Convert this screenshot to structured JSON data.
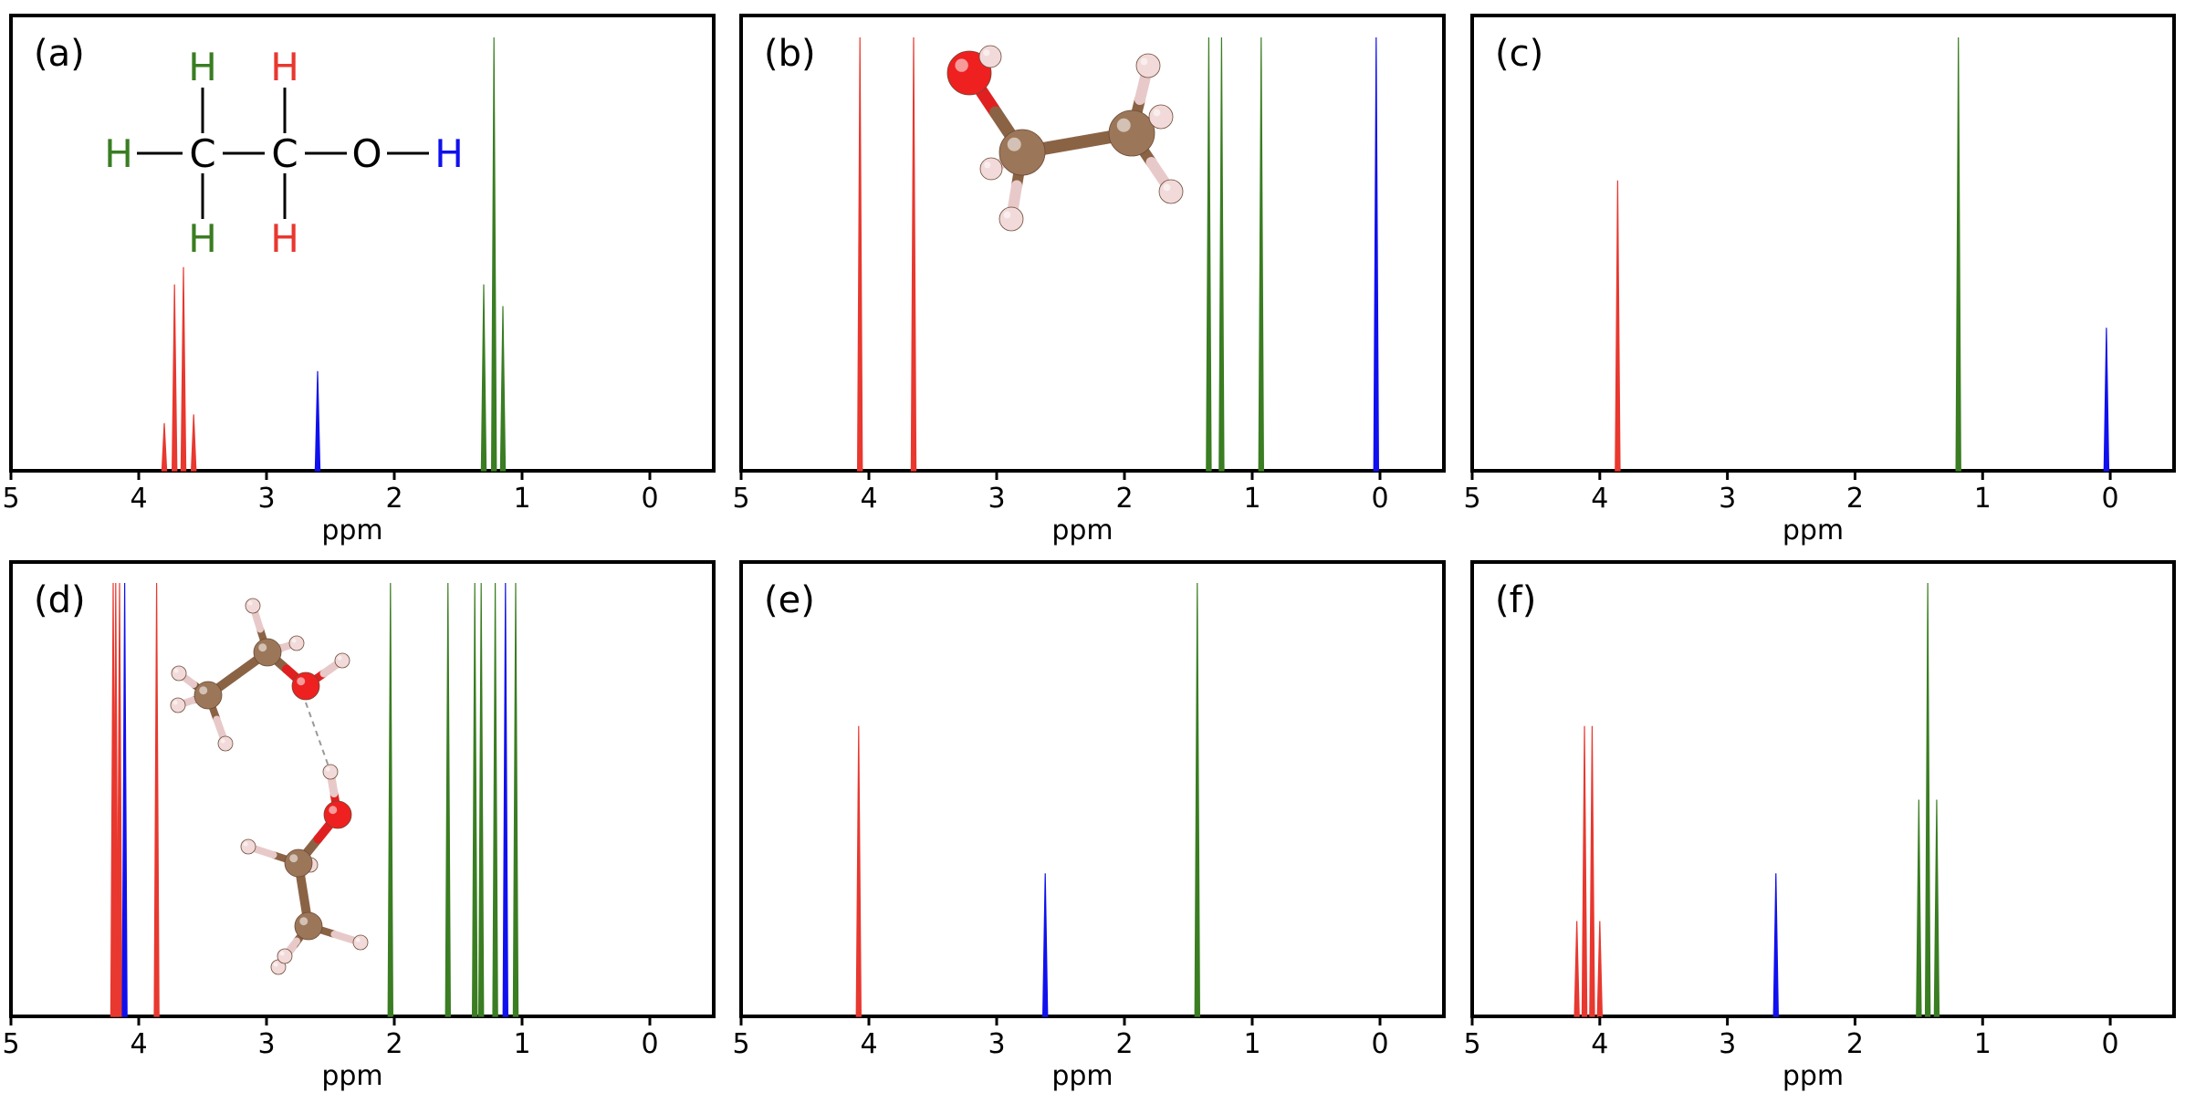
{
  "colors": {
    "CH2": "#e8382f",
    "CH3": "#3a7d22",
    "OH": "#1010ee",
    "atom_C": "#9c7659",
    "atom_O": "#ee2020",
    "atom_H": "#f2dada"
  },
  "chart_data": [
    {
      "type": "line",
      "label": "(a)",
      "xlabel": "ppm",
      "xlim": [
        5,
        -0.5
      ],
      "xticks": [
        5,
        4,
        3,
        2,
        1,
        0
      ],
      "grid": false,
      "series": [
        {
          "group": "CH2",
          "x": [
            3.8,
            3.72,
            3.65,
            3.57
          ],
          "y": [
            0.11,
            0.43,
            0.47,
            0.13
          ]
        },
        {
          "group": "OH",
          "x": [
            2.6
          ],
          "y": [
            0.23
          ]
        },
        {
          "group": "CH3",
          "x": [
            1.3,
            1.22,
            1.15
          ],
          "y": [
            0.43,
            1.0,
            0.38
          ]
        }
      ],
      "inset": {
        "kind": "structure",
        "atoms": [
          "H",
          "C",
          "C",
          "O",
          "H"
        ],
        "h_label": "H",
        "c_label": "C",
        "o_label": "O"
      }
    },
    {
      "type": "line",
      "label": "(b)",
      "xlabel": "ppm",
      "xlim": [
        5,
        -0.5
      ],
      "xticks": [
        5,
        4,
        3,
        2,
        1,
        0
      ],
      "grid": false,
      "series": [
        {
          "group": "CH2",
          "x": [
            4.07,
            3.65
          ],
          "y": [
            1.0,
            1.0
          ]
        },
        {
          "group": "CH3",
          "x": [
            1.34,
            1.24,
            0.93
          ],
          "y": [
            1.0,
            1.0,
            1.0
          ]
        },
        {
          "group": "OH",
          "x": [
            0.03
          ],
          "y": [
            1.0
          ]
        }
      ],
      "inset": {
        "kind": "ball-and-stick",
        "molecules": 1
      }
    },
    {
      "type": "line",
      "label": "(c)",
      "xlabel": "ppm",
      "xlim": [
        5,
        -0.5
      ],
      "xticks": [
        5,
        4,
        3,
        2,
        1,
        0
      ],
      "grid": false,
      "series": [
        {
          "group": "CH2",
          "x": [
            3.86
          ],
          "y": [
            0.67
          ]
        },
        {
          "group": "CH3",
          "x": [
            1.19
          ],
          "y": [
            1.0
          ]
        },
        {
          "group": "OH",
          "x": [
            0.03
          ],
          "y": [
            0.33
          ]
        }
      ]
    },
    {
      "type": "line",
      "label": "(d)",
      "xlabel": "ppm",
      "xlim": [
        5,
        -0.5
      ],
      "xticks": [
        5,
        4,
        3,
        2,
        1,
        0
      ],
      "grid": false,
      "series": [
        {
          "group": "CH2",
          "x": [
            4.2,
            4.18,
            4.15,
            3.86
          ],
          "y": [
            1.0,
            1.0,
            1.0,
            1.0
          ]
        },
        {
          "group": "OH",
          "x": [
            4.11,
            1.13
          ],
          "y": [
            1.0,
            1.0
          ]
        },
        {
          "group": "CH3",
          "x": [
            2.03,
            1.58,
            1.37,
            1.32,
            1.21,
            1.05
          ],
          "y": [
            1.0,
            1.0,
            1.0,
            1.0,
            1.0,
            1.0
          ]
        }
      ],
      "inset": {
        "kind": "ball-and-stick",
        "molecules": 2
      }
    },
    {
      "type": "line",
      "label": "(e)",
      "xlabel": "ppm",
      "xlim": [
        5,
        -0.5
      ],
      "xticks": [
        5,
        4,
        3,
        2,
        1,
        0
      ],
      "grid": false,
      "series": [
        {
          "group": "CH2",
          "x": [
            4.08
          ],
          "y": [
            0.67
          ]
        },
        {
          "group": "OH",
          "x": [
            2.62
          ],
          "y": [
            0.33
          ]
        },
        {
          "group": "CH3",
          "x": [
            1.43
          ],
          "y": [
            1.0
          ]
        }
      ]
    },
    {
      "type": "line",
      "label": "(f)",
      "xlabel": "ppm",
      "xlim": [
        5,
        -0.5
      ],
      "xticks": [
        5,
        4,
        3,
        2,
        1,
        0
      ],
      "grid": false,
      "series": [
        {
          "group": "CH2",
          "x": [
            4.18,
            4.12,
            4.06,
            4.0
          ],
          "y": [
            0.22,
            0.67,
            0.67,
            0.22
          ]
        },
        {
          "group": "OH",
          "x": [
            2.62
          ],
          "y": [
            0.33
          ]
        },
        {
          "group": "CH3",
          "x": [
            1.5,
            1.43,
            1.36
          ],
          "y": [
            0.5,
            1.0,
            0.5
          ]
        }
      ]
    }
  ]
}
